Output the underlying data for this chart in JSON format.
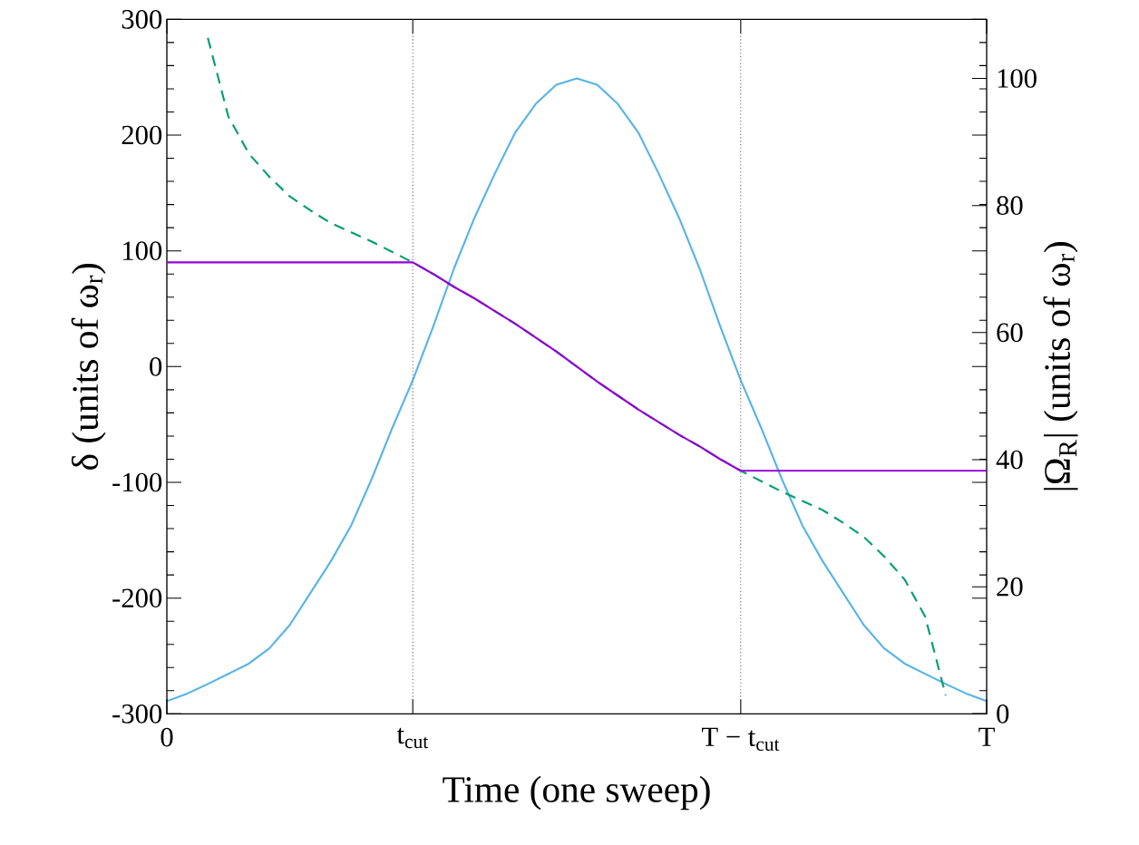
{
  "chart_data": {
    "type": "line",
    "xlabel": "Time   (one sweep)",
    "ylabel": "δ   (units of ω$_{r}$)",
    "y2label": "|Ω$_{R}$|   (units of ω$_{r}$)",
    "categories": [
      "0",
      null,
      null,
      null,
      null,
      null,
      null,
      null,
      null,
      null,
      null,
      null,
      "t$_{cut}$",
      null,
      null,
      null,
      null,
      null,
      null,
      null,
      null,
      null,
      null,
      null,
      null,
      null,
      null,
      null,
      "T − t$_{cut}$",
      null,
      null,
      null,
      null,
      null,
      null,
      null,
      null,
      null,
      null,
      null,
      "T"
    ],
    "ylim": [
      -300,
      300
    ],
    "yticks": [
      -300,
      -200,
      -100,
      0,
      100,
      200,
      300
    ],
    "y2lim": [
      0,
      109.3
    ],
    "y2ticks": [
      0,
      20,
      40,
      60,
      80,
      100
    ],
    "ref_lines": [
      {
        "axis": "x",
        "value": "t$_{cut}$",
        "color": "#555555",
        "line_style": "dotted"
      },
      {
        "axis": "x",
        "value": "T − t$_{cut}$",
        "color": "#555555",
        "line_style": "dotted"
      }
    ],
    "series": [
      {
        "color": "#56b4e9",
        "axis": "y2",
        "line_style": "solid",
        "values": [
          2,
          3.2,
          4.7,
          6.3,
          7.9,
          10.3,
          14,
          19,
          24,
          29.7,
          37,
          45,
          52.5,
          61,
          70,
          78,
          85,
          91.5,
          96,
          99,
          100,
          99,
          96,
          91.5,
          85,
          78,
          70,
          61,
          52.5,
          45,
          37,
          29.7,
          24,
          19,
          14,
          10.3,
          7.9,
          6.3,
          4.7,
          3.2,
          2
        ]
      },
      {
        "color": "#009e73",
        "line_style": "dashed",
        "values": [
          null,
          null,
          284,
          216,
          184,
          164,
          147,
          135,
          124,
          116,
          108,
          99,
          90,
          80,
          69,
          59,
          48,
          37,
          25,
          13,
          0,
          -13,
          -25,
          -37,
          -48,
          -59,
          -69,
          -80,
          -90,
          -99,
          -108,
          -116,
          -124,
          -135,
          -147,
          -164,
          -184,
          -216,
          -284,
          null,
          null
        ]
      },
      {
        "color": "#9400d3",
        "line_style": "solid",
        "values": [
          90,
          90,
          90,
          90,
          90,
          90,
          90,
          90,
          90,
          90,
          90,
          90,
          90,
          80,
          69,
          59,
          48,
          37,
          25,
          13,
          0,
          -13,
          -25,
          -37,
          -48,
          -59,
          -69,
          -80,
          -90,
          -90,
          -90,
          -90,
          -90,
          -90,
          -90,
          -90,
          -90,
          -90,
          -90,
          -90,
          -90
        ]
      }
    ]
  }
}
